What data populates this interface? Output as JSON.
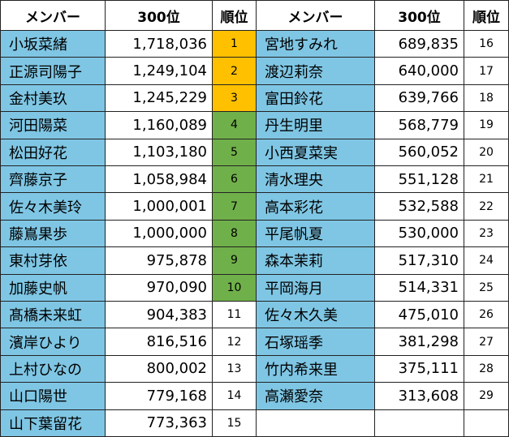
{
  "table": {
    "header": [
      "メンバー",
      "300位",
      "順位",
      "メンバー",
      "300位",
      "順位"
    ],
    "name_color": "#7fc6e4",
    "left": [
      {
        "name": "小坂菜緒",
        "votes": "1,718,036",
        "rank": 1,
        "rank_color": "#ffc000"
      },
      {
        "name": "正源司陽子",
        "votes": "1,249,104",
        "rank": 2,
        "rank_color": "#ffc000"
      },
      {
        "name": "金村美玖",
        "votes": "1,245,229",
        "rank": 3,
        "rank_color": "#ffc000"
      },
      {
        "name": "河田陽菜",
        "votes": "1,160,089",
        "rank": 4,
        "rank_color": "#70b04a"
      },
      {
        "name": "松田好花",
        "votes": "1,103,180",
        "rank": 5,
        "rank_color": "#70b04a"
      },
      {
        "name": "齊藤京子",
        "votes": "1,058,984",
        "rank": 6,
        "rank_color": "#70b04a"
      },
      {
        "name": "佐々木美玲",
        "votes": "1,000,001",
        "rank": 7,
        "rank_color": "#70b04a"
      },
      {
        "name": "藤嶌果歩",
        "votes": "1,000,000",
        "rank": 8,
        "rank_color": "#70b04a"
      },
      {
        "name": "東村芽依",
        "votes": "975,878",
        "rank": 9,
        "rank_color": "#70b04a"
      },
      {
        "name": "加藤史帆",
        "votes": "970,090",
        "rank": 10,
        "rank_color": "#70b04a"
      },
      {
        "name": "髙橋未来虹",
        "votes": "904,383",
        "rank": 11
      },
      {
        "name": "濱岸ひより",
        "votes": "816,516",
        "rank": 12
      },
      {
        "name": "上村ひなの",
        "votes": "800,002",
        "rank": 13
      },
      {
        "name": "山口陽世",
        "votes": "779,168",
        "rank": 14
      },
      {
        "name": "山下葉留花",
        "votes": "773,363",
        "rank": 15
      }
    ],
    "right": [
      {
        "name": "宮地すみれ",
        "votes": "689,835",
        "rank": 16
      },
      {
        "name": "渡辺莉奈",
        "votes": "640,000",
        "rank": 17
      },
      {
        "name": "富田鈴花",
        "votes": "639,766",
        "rank": 18
      },
      {
        "name": "丹生明里",
        "votes": "568,779",
        "rank": 19
      },
      {
        "name": "小西夏菜実",
        "votes": "560,052",
        "rank": 20
      },
      {
        "name": "清水理央",
        "votes": "551,128",
        "rank": 21
      },
      {
        "name": "高本彩花",
        "votes": "532,588",
        "rank": 22
      },
      {
        "name": "平尾帆夏",
        "votes": "530,000",
        "rank": 23
      },
      {
        "name": "森本茉莉",
        "votes": "517,310",
        "rank": 24
      },
      {
        "name": "平岡海月",
        "votes": "514,331",
        "rank": 25
      },
      {
        "name": "佐々木久美",
        "votes": "475,010",
        "rank": 26
      },
      {
        "name": "石塚瑶季",
        "votes": "381,298",
        "rank": 27
      },
      {
        "name": "竹内希来里",
        "votes": "375,111",
        "rank": 28
      },
      {
        "name": "高瀬愛奈",
        "votes": "313,608",
        "rank": 29
      }
    ]
  }
}
